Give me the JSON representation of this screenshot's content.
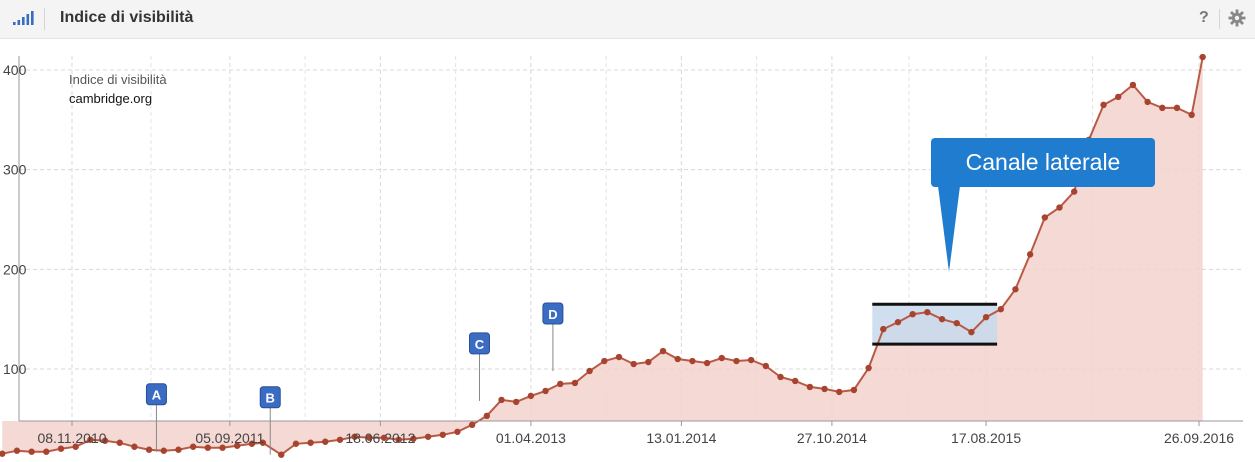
{
  "header": {
    "title": "Indice di visibilità",
    "help_label": "?",
    "icons": {
      "left": "bar-signal-icon",
      "right": "gear-icon"
    }
  },
  "colors": {
    "line": "#b85a45",
    "area": "#f3d2cd",
    "dot": "#a7432f",
    "callout": "#1f7ccf",
    "marker": "#3b6cc4",
    "selection": "#c7d9ec"
  },
  "annotation": {
    "text": "Canale laterale"
  },
  "chart_data": {
    "type": "area",
    "legend": {
      "line1": "Indice di visibilità",
      "line2": "cambridge.org",
      "placement": "top-left"
    },
    "ylim": [
      0,
      420
    ],
    "yticks": [
      "100",
      "200",
      "300",
      "400"
    ],
    "ytick_values": [
      100,
      200,
      300,
      400
    ],
    "xticks": [
      "08.11.2010",
      "05.09.2011",
      "18.06.2012",
      "01.04.2013",
      "13.01.2014",
      "27.10.2014",
      "17.08.2015",
      "26.09.2016"
    ],
    "xtick_dates": [
      "2010-11-08",
      "2011-09-05",
      "2012-06-18",
      "2013-04-01",
      "2014-01-13",
      "2014-10-27",
      "2015-08-17",
      "2016-09-26"
    ],
    "grid": true,
    "series": [
      {
        "name": "cambridge.org",
        "x": [
          "2010-06-28",
          "2010-07-26",
          "2010-08-23",
          "2010-09-20",
          "2010-10-18",
          "2010-11-15",
          "2010-12-13",
          "2011-01-10",
          "2011-02-07",
          "2011-03-07",
          "2011-04-04",
          "2011-05-02",
          "2011-05-30",
          "2011-06-27",
          "2011-07-25",
          "2011-08-22",
          "2011-09-19",
          "2011-10-17",
          "2011-11-07",
          "2011-12-12",
          "2012-01-09",
          "2012-02-06",
          "2012-03-05",
          "2012-04-02",
          "2012-04-30",
          "2012-05-28",
          "2012-06-25",
          "2012-07-23",
          "2012-08-20",
          "2012-09-17",
          "2012-10-15",
          "2012-11-12",
          "2012-12-10",
          "2013-01-07",
          "2013-02-04",
          "2013-03-04",
          "2013-04-01",
          "2013-04-29",
          "2013-05-27",
          "2013-06-24",
          "2013-07-22",
          "2013-08-19",
          "2013-09-16",
          "2013-10-14",
          "2013-11-11",
          "2013-12-09",
          "2014-01-06",
          "2014-02-03",
          "2014-03-03",
          "2014-03-31",
          "2014-04-28",
          "2014-05-26",
          "2014-06-23",
          "2014-07-21",
          "2014-08-18",
          "2014-09-15",
          "2014-10-13",
          "2014-11-10",
          "2014-12-08",
          "2015-01-05",
          "2015-02-02",
          "2015-03-02",
          "2015-03-30",
          "2015-04-27",
          "2015-05-25",
          "2015-06-22",
          "2015-07-20",
          "2015-08-17",
          "2015-09-14",
          "2015-10-12",
          "2015-11-09",
          "2015-12-07",
          "2016-01-04",
          "2016-02-01",
          "2016-02-29",
          "2016-03-28",
          "2016-04-25",
          "2016-05-23",
          "2016-06-20",
          "2016-07-18",
          "2016-08-15",
          "2016-09-12",
          "2016-10-03"
        ],
        "values": [
          15,
          18,
          17,
          17,
          20,
          22,
          29,
          28,
          26,
          22,
          19,
          18,
          19,
          22,
          21,
          21,
          23,
          25,
          26,
          14,
          25,
          26,
          27,
          29,
          32,
          31,
          31,
          29,
          30,
          32,
          34,
          37,
          44,
          53,
          69,
          67,
          73,
          78,
          85,
          86,
          98,
          108,
          112,
          105,
          107,
          118,
          110,
          108,
          106,
          111,
          108,
          109,
          103,
          92,
          88,
          82,
          80,
          77,
          79,
          101,
          140,
          147,
          155,
          157,
          150,
          146,
          137,
          152,
          160,
          180,
          215,
          252,
          262,
          278,
          330,
          365,
          373,
          385,
          368,
          362,
          362,
          355,
          413
        ]
      }
    ],
    "markers": [
      {
        "label": "A",
        "date": "2011-04-18",
        "value": 17
      },
      {
        "label": "B",
        "date": "2011-11-21",
        "value": 14
      },
      {
        "label": "C",
        "date": "2012-12-24",
        "value": 68
      },
      {
        "label": "D",
        "date": "2013-05-13",
        "value": 98
      }
    ],
    "selection": {
      "from": "2015-01-12",
      "to": "2015-09-07",
      "low": 125,
      "high": 165
    }
  }
}
